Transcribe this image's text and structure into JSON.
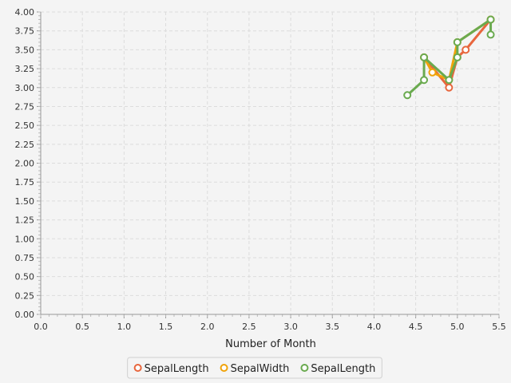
{
  "chart_data": {
    "type": "line",
    "title": "",
    "xlabel": "Number of Month",
    "ylabel": "",
    "xlim": [
      0,
      5.5
    ],
    "ylim": [
      0,
      4.0
    ],
    "x_ticks": [
      "0.0",
      "0.5",
      "1.0",
      "1.5",
      "2.0",
      "2.5",
      "3.0",
      "3.5",
      "4.0",
      "4.5",
      "5.0",
      "5.5"
    ],
    "y_ticks": [
      "0.00",
      "0.25",
      "0.50",
      "0.75",
      "1.00",
      "1.25",
      "1.50",
      "1.75",
      "2.00",
      "2.25",
      "2.50",
      "2.75",
      "3.00",
      "3.25",
      "3.50",
      "3.75",
      "4.00"
    ],
    "grid": true,
    "legend_placement": "bottom-center",
    "series": [
      {
        "name": "SepalLength",
        "color": "#e8663d",
        "points": [
          [
            4.6,
            3.4
          ],
          [
            4.9,
            3.0
          ],
          [
            5.0,
            3.4
          ],
          [
            5.1,
            3.5
          ],
          [
            5.4,
            3.9
          ]
        ]
      },
      {
        "name": "SepalWidth",
        "color": "#f0a30a",
        "points": [
          [
            4.6,
            3.4
          ],
          [
            4.7,
            3.2
          ],
          [
            4.9,
            3.1
          ],
          [
            5.0,
            3.6
          ],
          [
            5.4,
            3.9
          ]
        ]
      },
      {
        "name": "SepalLength",
        "color": "#6aaa4f",
        "points": [
          [
            4.4,
            2.9
          ],
          [
            4.6,
            3.1
          ],
          [
            4.6,
            3.4
          ],
          [
            4.9,
            3.1
          ],
          [
            5.0,
            3.4
          ],
          [
            5.0,
            3.6
          ],
          [
            5.4,
            3.9
          ],
          [
            5.4,
            3.7
          ]
        ]
      }
    ]
  }
}
